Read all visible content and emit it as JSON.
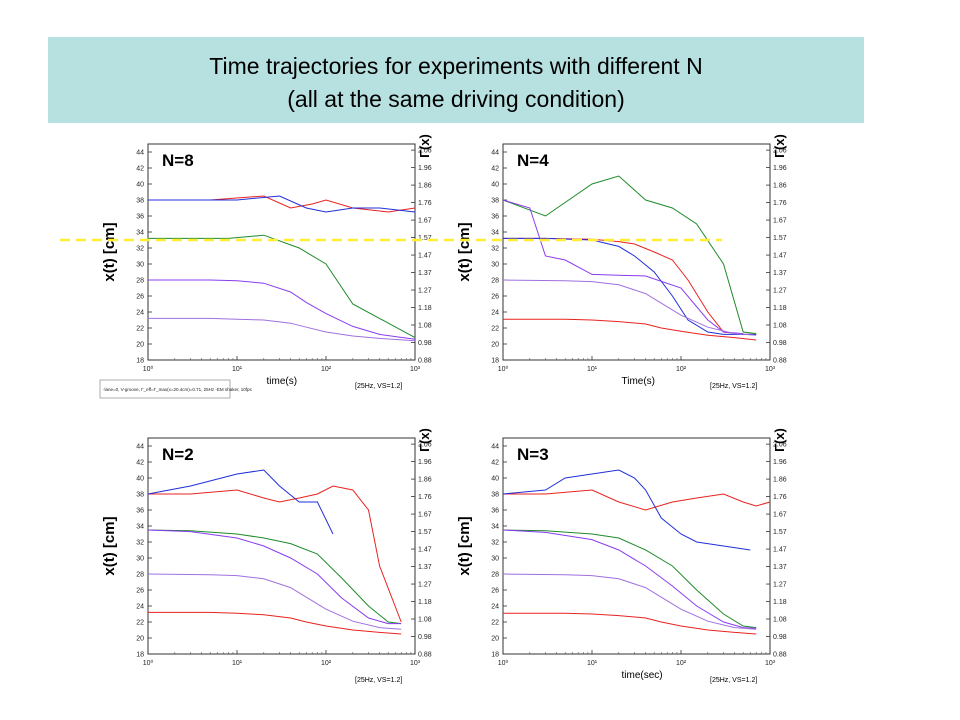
{
  "banner": {
    "line1": "Time trajectories for experiments with different N",
    "line2": "(all at the same driving condition)"
  },
  "colors": {
    "banner_bg": "#b7e1e0",
    "dashed_line": "#ffee33",
    "series": [
      "#e8231f",
      "#1f2fd8",
      "#1e8b2a",
      "#8a3cf0",
      "#a070e0"
    ]
  },
  "shared": {
    "ylabel": "x(t)  [cm]",
    "gamma_label": "Γ(x)",
    "y_ticks": [
      "18",
      "20",
      "22",
      "24",
      "26",
      "28",
      "30",
      "32",
      "34",
      "36",
      "38",
      "40",
      "42",
      "44"
    ],
    "gamma_ticks": [
      "0.88",
      "0.98",
      "1.08",
      "1.18",
      "1.27",
      "1.37",
      "1.47",
      "1.57",
      "1.67",
      "1.76",
      "1.86",
      "1.96",
      "2.06"
    ],
    "x_ticks": [
      "10⁰",
      "10¹",
      "10²",
      "10³"
    ],
    "condition": "[25Hz, VS=1.2]"
  },
  "chart_data": [
    {
      "type": "line",
      "panel_label": "N=8",
      "xlabel": "time(s)",
      "xscale": "log",
      "xlim": [
        1,
        1000
      ],
      "ylim": [
        18,
        45
      ],
      "legend_note": "-lane=0, V-groove, Γ_eff=Γ_max(x=20.4cm)=0.71, 25Hz -EM shaker, 10fps",
      "series": [
        {
          "x": [
            1,
            5,
            20,
            40,
            70,
            100,
            200,
            500,
            1000
          ],
          "y": [
            38,
            38,
            38.5,
            37,
            37.5,
            38,
            37,
            36.5,
            37
          ]
        },
        {
          "x": [
            1,
            10,
            30,
            60,
            100,
            200,
            400,
            1000
          ],
          "y": [
            38,
            38,
            38.5,
            37,
            36.5,
            37,
            37,
            36.5
          ]
        },
        {
          "x": [
            1,
            8,
            20,
            50,
            100,
            200,
            1000
          ],
          "y": [
            33.2,
            33.2,
            33.6,
            32,
            30,
            25,
            20.8
          ]
        },
        {
          "x": [
            1,
            5,
            10,
            20,
            40,
            60,
            100,
            200,
            400,
            1000
          ],
          "y": [
            28,
            28,
            27.9,
            27.6,
            26.5,
            25.2,
            23.8,
            22.2,
            21.2,
            20.6
          ]
        },
        {
          "x": [
            1,
            5,
            10,
            20,
            40,
            60,
            100,
            200,
            400,
            1000
          ],
          "y": [
            23.2,
            23.2,
            23.1,
            23.0,
            22.6,
            22.1,
            21.5,
            21.0,
            20.7,
            20.4
          ]
        }
      ]
    },
    {
      "type": "line",
      "panel_label": "N=4",
      "xlabel": "Time(s)",
      "xscale": "log",
      "xlim": [
        1,
        1000
      ],
      "ylim": [
        18,
        45
      ],
      "series": [
        {
          "x": [
            1,
            3,
            10,
            20,
            30,
            50,
            80,
            120,
            200,
            300,
            500,
            700
          ],
          "y": [
            33.2,
            33.2,
            33.1,
            32.8,
            32.5,
            31.5,
            30.5,
            28,
            24,
            21.5,
            21.2,
            21.2
          ]
        },
        {
          "x": [
            1,
            3,
            10,
            20,
            30,
            50,
            80,
            120,
            200,
            300,
            500,
            700
          ],
          "y": [
            33.2,
            33.2,
            33.0,
            32.2,
            31,
            29,
            26,
            23,
            21.5,
            21.2,
            21.2,
            21.2
          ]
        },
        {
          "x": [
            1,
            3,
            10,
            20,
            40,
            80,
            150,
            300,
            500,
            700
          ],
          "y": [
            38,
            36,
            40,
            41,
            38,
            37,
            35,
            30,
            21.5,
            21.3
          ]
        },
        {
          "x": [
            1,
            2,
            3,
            5,
            10,
            20,
            40,
            100,
            200,
            300,
            500
          ],
          "y": [
            38,
            37,
            31,
            30.5,
            28.7,
            28.6,
            28.5,
            27,
            23,
            21.5,
            21.3
          ]
        },
        {
          "x": [
            1,
            5,
            10,
            20,
            40,
            60,
            100,
            200,
            400,
            700
          ],
          "y": [
            28,
            27.9,
            27.8,
            27.4,
            26.3,
            25.1,
            23.6,
            22.1,
            21.3,
            21.1
          ]
        },
        {
          "x": [
            1,
            5,
            10,
            20,
            40,
            60,
            100,
            200,
            400,
            700
          ],
          "y": [
            23.1,
            23.1,
            23.0,
            22.8,
            22.5,
            22.0,
            21.6,
            21.1,
            20.8,
            20.5
          ]
        }
      ]
    },
    {
      "type": "line",
      "panel_label": "N=2",
      "xlabel": "",
      "xscale": "log",
      "xlim": [
        1,
        1000
      ],
      "ylim": [
        18,
        45
      ],
      "series": [
        {
          "x": [
            1,
            3,
            10,
            20,
            30,
            50,
            80,
            120,
            200,
            300,
            400,
            700
          ],
          "y": [
            38,
            38,
            38.5,
            37.5,
            37,
            37.5,
            38,
            39,
            38.5,
            36,
            29,
            22
          ]
        },
        {
          "x": [
            1,
            3,
            10,
            20,
            30,
            50,
            80,
            120
          ],
          "y": [
            38,
            39,
            40.5,
            41,
            39,
            37,
            37,
            33
          ]
        },
        {
          "x": [
            1,
            3,
            10,
            20,
            40,
            80,
            150,
            300,
            500,
            700
          ],
          "y": [
            33.5,
            33.4,
            33.0,
            32.5,
            31.8,
            30.5,
            27.5,
            24,
            22,
            21.8
          ]
        },
        {
          "x": [
            1,
            3,
            10,
            20,
            40,
            80,
            150,
            300,
            500,
            700
          ],
          "y": [
            33.5,
            33.3,
            32.5,
            31.5,
            30,
            28,
            25,
            22.5,
            21.8,
            21.8
          ]
        },
        {
          "x": [
            1,
            5,
            10,
            20,
            40,
            60,
            100,
            200,
            400,
            700
          ],
          "y": [
            28,
            27.9,
            27.8,
            27.4,
            26.3,
            25.1,
            23.6,
            22.1,
            21.3,
            21.1
          ]
        },
        {
          "x": [
            1,
            5,
            10,
            20,
            40,
            60,
            100,
            200,
            400,
            700
          ],
          "y": [
            23.2,
            23.2,
            23.1,
            22.9,
            22.5,
            22.0,
            21.5,
            21.0,
            20.7,
            20.5
          ]
        }
      ]
    },
    {
      "type": "line",
      "panel_label": "N=3",
      "xlabel": "time(sec)",
      "xscale": "log",
      "xlim": [
        1,
        1000
      ],
      "ylim": [
        18,
        45
      ],
      "series": [
        {
          "x": [
            1,
            3,
            10,
            20,
            40,
            80,
            150,
            300,
            500,
            700,
            1000
          ],
          "y": [
            38,
            38,
            38.5,
            37,
            36,
            37,
            37.5,
            38,
            37,
            36.5,
            37
          ]
        },
        {
          "x": [
            1,
            3,
            5,
            10,
            20,
            30,
            40,
            60,
            100,
            150,
            300,
            600
          ],
          "y": [
            38,
            38.5,
            40,
            40.5,
            41,
            40,
            38.5,
            35,
            33,
            32,
            31.5,
            31
          ]
        },
        {
          "x": [
            1,
            3,
            10,
            20,
            40,
            80,
            150,
            300,
            500,
            700
          ],
          "y": [
            33.5,
            33.4,
            33.0,
            32.5,
            31,
            29,
            26,
            23,
            21.5,
            21.3
          ]
        },
        {
          "x": [
            1,
            3,
            10,
            20,
            40,
            80,
            150,
            300,
            500,
            700
          ],
          "y": [
            33.5,
            33.2,
            32.3,
            31,
            29,
            26.5,
            24,
            22,
            21.3,
            21.2
          ]
        },
        {
          "x": [
            1,
            5,
            10,
            20,
            40,
            60,
            100,
            200,
            400,
            700
          ],
          "y": [
            28,
            27.9,
            27.8,
            27.4,
            26.3,
            25.1,
            23.6,
            22.1,
            21.3,
            21.1
          ]
        },
        {
          "x": [
            1,
            5,
            10,
            20,
            40,
            60,
            100,
            200,
            400,
            700
          ],
          "y": [
            23.1,
            23.1,
            23.0,
            22.8,
            22.5,
            22.0,
            21.5,
            21.0,
            20.7,
            20.5
          ]
        }
      ]
    }
  ]
}
